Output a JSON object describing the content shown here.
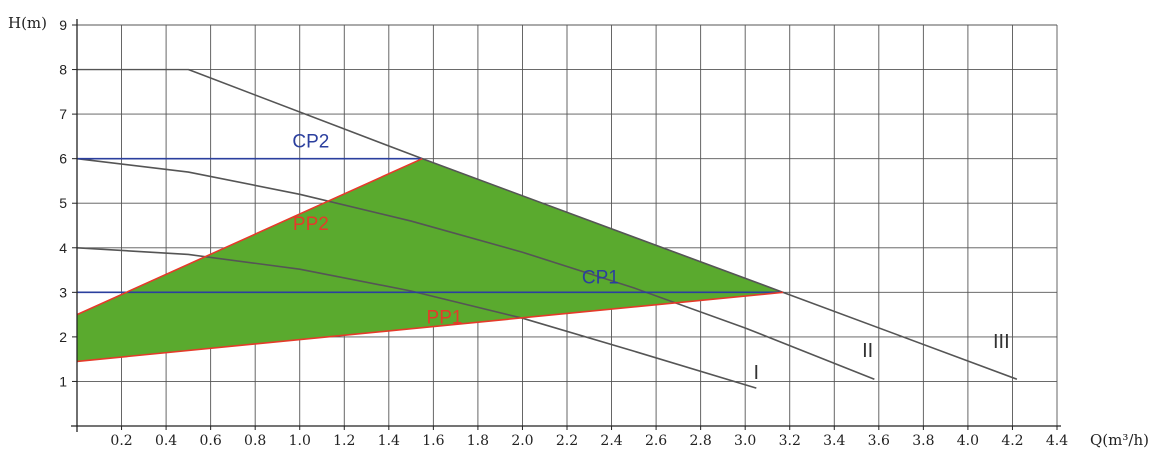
{
  "chart_data": {
    "type": "line",
    "title": "",
    "xlabel": "Q(m³/h)",
    "ylabel": "H(m)",
    "xlim": [
      0,
      4.4
    ],
    "ylim": [
      0,
      9
    ],
    "x_ticks": [
      "0.2",
      "0.4",
      "0.6",
      "0.8",
      "1.0",
      "1.2",
      "1.4",
      "1.6",
      "1.8",
      "2.0",
      "2.2",
      "2.4",
      "2.6",
      "2.8",
      "3.0",
      "3.2",
      "3.4",
      "3.6",
      "3.8",
      "4.0",
      "4.2",
      "4.4"
    ],
    "y_ticks": [
      "1",
      "2",
      "3",
      "4",
      "5",
      "6",
      "7",
      "8",
      "9"
    ],
    "grid": true,
    "colors": {
      "grid": "#555555",
      "curve": "#555555",
      "blue": "#2b3f9e",
      "red": "#e53a2a",
      "fill": "#5aaa2e"
    },
    "shaded_region": {
      "name": "",
      "points": [
        [
          0,
          2.5
        ],
        [
          1.55,
          6.0
        ],
        [
          3.17,
          3.0
        ],
        [
          0,
          1.45
        ]
      ]
    },
    "series": [
      {
        "name": "I",
        "color": "curve",
        "points": [
          [
            0,
            4.0
          ],
          [
            0.5,
            3.85
          ],
          [
            1.0,
            3.52
          ],
          [
            1.5,
            3.03
          ],
          [
            2.0,
            2.42
          ],
          [
            2.5,
            1.68
          ],
          [
            3.05,
            0.85
          ]
        ]
      },
      {
        "name": "II",
        "color": "curve",
        "points": [
          [
            0,
            6.0
          ],
          [
            0.5,
            5.7
          ],
          [
            1.0,
            5.2
          ],
          [
            1.5,
            4.6
          ],
          [
            2.0,
            3.9
          ],
          [
            2.5,
            3.1
          ],
          [
            3.0,
            2.2
          ],
          [
            3.58,
            1.05
          ]
        ]
      },
      {
        "name": "III",
        "color": "curve",
        "points": [
          [
            0.5,
            8.0
          ],
          [
            1.55,
            6.0
          ],
          [
            3.17,
            3.0
          ],
          [
            4.22,
            1.05
          ]
        ]
      },
      {
        "name": "CP2",
        "color": "blue",
        "points": [
          [
            0,
            6.0
          ],
          [
            1.55,
            6.0
          ]
        ]
      },
      {
        "name": "CP1",
        "color": "blue",
        "points": [
          [
            0,
            3.0
          ],
          [
            3.17,
            3.0
          ]
        ]
      },
      {
        "name": "PP2",
        "color": "red",
        "points": [
          [
            0,
            2.5
          ],
          [
            1.55,
            6.0
          ]
        ]
      },
      {
        "name": "PP1",
        "color": "red",
        "points": [
          [
            0,
            1.45
          ],
          [
            3.17,
            3.0
          ]
        ]
      }
    ],
    "top_line": {
      "points": [
        [
          0,
          8.0
        ],
        [
          0.5,
          8.0
        ]
      ]
    },
    "annotations": [
      {
        "text": "CP2",
        "x": 1.05,
        "y": 6.25,
        "color": "blue"
      },
      {
        "text": "PP2",
        "x": 1.05,
        "y": 4.4,
        "color": "red"
      },
      {
        "text": "CP1",
        "x": 2.35,
        "y": 3.2,
        "color": "blue"
      },
      {
        "text": "PP1",
        "x": 1.65,
        "y": 2.3,
        "color": "red"
      },
      {
        "text": "I",
        "x": 3.05,
        "y": 1.05,
        "color": "curve"
      },
      {
        "text": "II",
        "x": 3.55,
        "y": 1.55,
        "color": "curve"
      },
      {
        "text": "III",
        "x": 4.15,
        "y": 1.75,
        "color": "curve"
      }
    ]
  }
}
